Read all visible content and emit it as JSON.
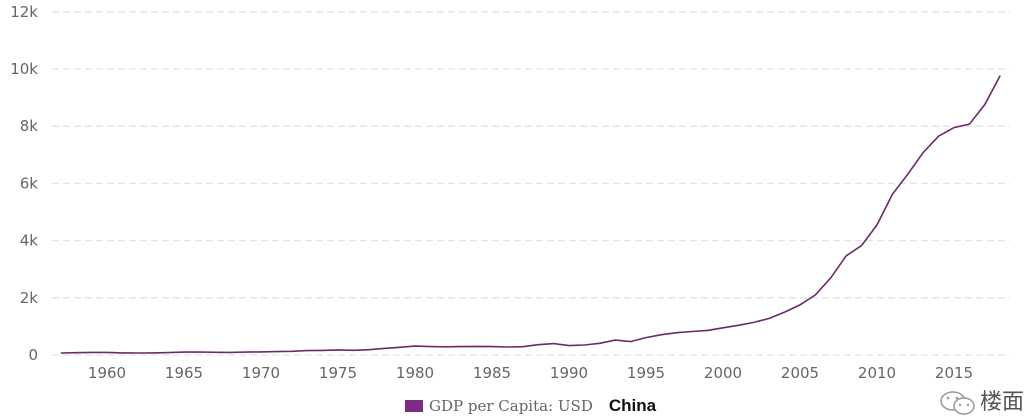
{
  "chart_data": {
    "type": "line",
    "title": "",
    "xlabel": "",
    "ylabel": "",
    "xlim": [
      1957,
      2020
    ],
    "ylim": [
      0,
      12000
    ],
    "x_ticks": [
      "1960",
      "1965",
      "1970",
      "1975",
      "1980",
      "1985",
      "1990",
      "1995",
      "2000",
      "2005",
      "2010",
      "2015"
    ],
    "y_ticks": [
      "0",
      "2k",
      "4k",
      "6k",
      "8k",
      "10k",
      "12k"
    ],
    "grid": true,
    "legend_position": "bottom-center",
    "series": [
      {
        "name": "GDP per Capita: USD",
        "color": "#6b2a6b",
        "x": [
          1957,
          1958,
          1959,
          1960,
          1961,
          1962,
          1963,
          1964,
          1965,
          1966,
          1967,
          1968,
          1969,
          1970,
          1971,
          1972,
          1973,
          1974,
          1975,
          1976,
          1977,
          1978,
          1979,
          1980,
          1981,
          1982,
          1983,
          1984,
          1985,
          1986,
          1987,
          1988,
          1989,
          1990,
          1991,
          1992,
          1993,
          1994,
          1995,
          1996,
          1997,
          1998,
          1999,
          2000,
          2001,
          2002,
          2003,
          2004,
          2005,
          2006,
          2007,
          2008,
          2009,
          2010,
          2011,
          2012,
          2013,
          2014,
          2015,
          2016,
          2017,
          2018
        ],
        "values": [
          70,
          80,
          90,
          90,
          75,
          70,
          75,
          85,
          100,
          105,
          95,
          90,
          100,
          110,
          120,
          130,
          155,
          160,
          180,
          165,
          185,
          230,
          270,
          310,
          295,
          285,
          295,
          300,
          295,
          280,
          290,
          360,
          400,
          330,
          350,
          410,
          520,
          470,
          610,
          710,
          780,
          820,
          860,
          950,
          1040,
          1140,
          1280,
          1500,
          1750,
          2100,
          2700,
          3470,
          3830,
          4550,
          5620,
          6320,
          7080,
          7650,
          7950,
          8070,
          8760,
          9770
        ]
      }
    ]
  },
  "legend": {
    "label": "GDP per Capita: USD",
    "country": "China"
  },
  "watermark": {
    "text": "楼面"
  }
}
